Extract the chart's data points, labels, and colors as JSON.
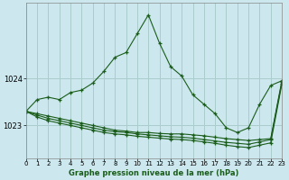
{
  "title": "Graphe pression niveau de la mer (hPa)",
  "bg_color": "#cce8ee",
  "grid_color": "#aacccc",
  "line_color": "#1a5c1a",
  "ylim": [
    1022.3,
    1025.6
  ],
  "yticks": [
    1023,
    1024
  ],
  "xlim": [
    0,
    23
  ],
  "xticks": [
    0,
    1,
    2,
    3,
    4,
    5,
    6,
    7,
    8,
    9,
    10,
    11,
    12,
    13,
    14,
    15,
    16,
    17,
    18,
    19,
    20,
    21,
    22,
    23
  ],
  "series": [
    [
      1023.3,
      1023.55,
      1023.6,
      1023.55,
      1023.7,
      1023.75,
      1023.9,
      1024.15,
      1024.45,
      1024.55,
      1024.95,
      1025.35,
      1024.75,
      1024.25,
      1024.05,
      1023.65,
      1023.45,
      1023.25,
      1022.95,
      1022.85,
      1022.95,
      1023.45,
      1023.85,
      1023.95
    ],
    [
      1023.3,
      1023.25,
      1023.2,
      1023.15,
      1023.1,
      1023.05,
      1023.0,
      1022.95,
      1022.9,
      1022.88,
      1022.85,
      1022.85,
      1022.83,
      1022.82,
      1022.82,
      1022.8,
      1022.78,
      1022.75,
      1022.72,
      1022.7,
      1022.68,
      1022.7,
      1022.72,
      1023.95
    ],
    [
      1023.3,
      1023.22,
      1023.15,
      1023.1,
      1023.05,
      1023.0,
      1022.95,
      1022.9,
      1022.87,
      1022.85,
      1022.82,
      1022.8,
      1022.78,
      1022.76,
      1022.75,
      1022.73,
      1022.7,
      1022.67,
      1022.64,
      1022.62,
      1022.6,
      1022.65,
      1022.7,
      1023.92
    ],
    [
      1023.3,
      1023.18,
      1023.1,
      1023.05,
      1023.0,
      1022.95,
      1022.9,
      1022.85,
      1022.82,
      1022.8,
      1022.77,
      1022.75,
      1022.73,
      1022.71,
      1022.7,
      1022.68,
      1022.65,
      1022.62,
      1022.58,
      1022.55,
      1022.53,
      1022.58,
      1022.63,
      1023.88
    ]
  ]
}
